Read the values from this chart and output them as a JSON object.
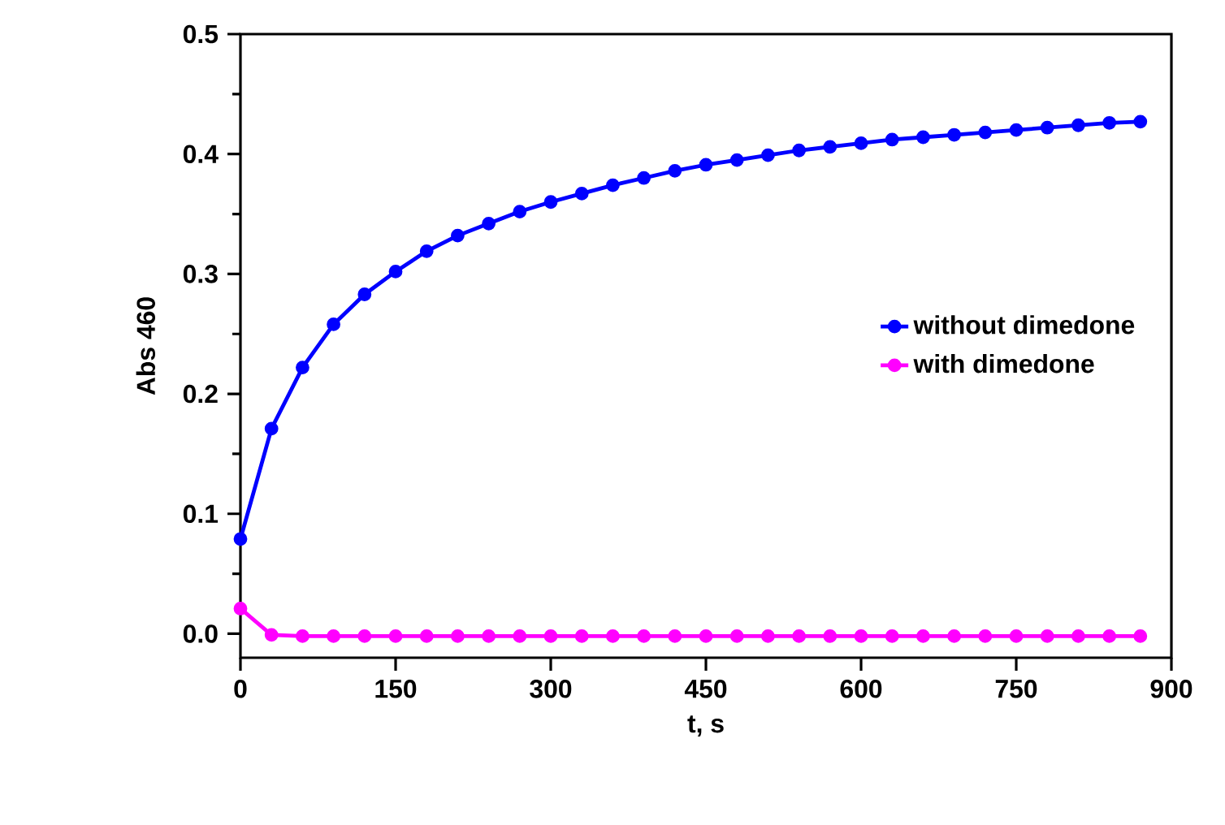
{
  "chart_data": {
    "type": "line",
    "xlabel": "t, s",
    "ylabel": "Abs 460",
    "x": [
      0,
      30,
      60,
      90,
      120,
      150,
      180,
      210,
      240,
      270,
      300,
      330,
      360,
      390,
      420,
      450,
      480,
      510,
      540,
      570,
      600,
      630,
      660,
      690,
      720,
      750,
      780,
      810,
      840,
      870
    ],
    "series": [
      {
        "name": "without dimedone",
        "color": "#0000ff",
        "values": [
          0.079,
          0.171,
          0.222,
          0.258,
          0.283,
          0.302,
          0.319,
          0.332,
          0.342,
          0.352,
          0.36,
          0.367,
          0.374,
          0.38,
          0.386,
          0.391,
          0.395,
          0.399,
          0.403,
          0.406,
          0.409,
          0.412,
          0.414,
          0.416,
          0.418,
          0.42,
          0.422,
          0.424,
          0.426,
          0.427
        ]
      },
      {
        "name": "with dimedone",
        "color": "#ff00ff",
        "values": [
          0.021,
          -0.001,
          -0.002,
          -0.002,
          -0.002,
          -0.002,
          -0.002,
          -0.002,
          -0.002,
          -0.002,
          -0.002,
          -0.002,
          -0.002,
          -0.002,
          -0.002,
          -0.002,
          -0.002,
          -0.002,
          -0.002,
          -0.002,
          -0.002,
          -0.002,
          -0.002,
          -0.002,
          -0.002,
          -0.002,
          -0.002,
          -0.002,
          -0.002,
          -0.002
        ]
      }
    ],
    "xlim": [
      0,
      900
    ],
    "xticks": [
      0,
      150,
      300,
      450,
      600,
      750,
      900
    ],
    "ylim": [
      -0.02,
      0.5
    ],
    "yticks": [
      {
        "value": 0,
        "label": "0.0"
      },
      0.1,
      0.2,
      0.3,
      0.4,
      0.5
    ],
    "legend": "right",
    "marker": "circle",
    "line_style": "solid",
    "grid": false
  }
}
